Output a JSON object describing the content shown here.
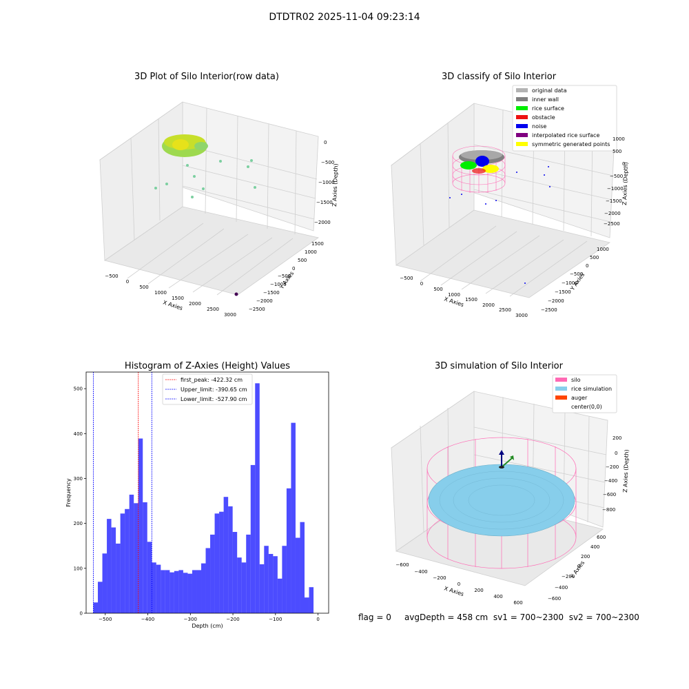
{
  "suptitle": "DTDTR02 2025-11-04 09:23:14",
  "panels": {
    "raw": {
      "title": "3D Plot of Silo Interior(row data)",
      "xlabel": "X Axies",
      "ylabel": "Y Axies",
      "zlabel": "Z Axies (Depth)",
      "xticks": [
        "−500",
        "0",
        "500",
        "1000",
        "1500",
        "2000",
        "2500",
        "3000"
      ],
      "yticks": [
        "1500",
        "1000",
        "500",
        "0",
        "−500",
        "−1000",
        "−1500",
        "−2000",
        "−2500"
      ],
      "zticks": [
        "0",
        "−500",
        "−1000",
        "−1500",
        "−2000"
      ]
    },
    "classify": {
      "title": "3D classify of Silo Interior",
      "xlabel": "X Axies",
      "ylabel": "Y Axies",
      "zlabel": "Z Axies (Depth)",
      "xticks": [
        "−500",
        "0",
        "500",
        "1000",
        "1500",
        "2000",
        "2500",
        "3000"
      ],
      "yticks": [
        "1000",
        "500",
        "0",
        "−500",
        "−1000",
        "−1500",
        "−2000",
        "−2500"
      ],
      "zticks": [
        "1000",
        "500",
        "0",
        "−500",
        "−1000",
        "−1500",
        "−2000",
        "−2500"
      ],
      "legend": [
        {
          "label": "original data",
          "color": "#b3b3b3"
        },
        {
          "label": "inner wall",
          "color": "#808080"
        },
        {
          "label": "rice surface",
          "color": "#00ee00"
        },
        {
          "label": "obstacle",
          "color": "#ee1111"
        },
        {
          "label": "noise",
          "color": "#0000ee"
        },
        {
          "label": "interpolated rice surface",
          "color": "#800080"
        },
        {
          "label": "symmetric generated points",
          "color": "#ffff00"
        }
      ]
    },
    "simulation": {
      "title": "3D simulation of Silo Interior",
      "xlabel": "X Axies",
      "ylabel": "Y Axies",
      "zlabel": "Z Axies (Depth)",
      "xticks": [
        "−600",
        "−400",
        "−200",
        "0",
        "200",
        "400",
        "600"
      ],
      "yticks": [
        "600",
        "400",
        "200",
        "0",
        "−200",
        "−400",
        "−600"
      ],
      "zticks": [
        "200",
        "0",
        "−200",
        "−400",
        "−600",
        "−800"
      ],
      "legend": [
        {
          "label": "silo",
          "color": "#ff69b4"
        },
        {
          "label": "rice simulation",
          "color": "#87ceeb"
        },
        {
          "label": "auger",
          "color": "#ff4500"
        },
        {
          "label": "center(0,0)",
          "color": ""
        }
      ]
    }
  },
  "status": {
    "flag": "flag = 0",
    "avg": "avgDepth = 458 cm",
    "sv1": "sv1 = 700~2300",
    "sv2": "sv2 = 700~2300"
  },
  "chart_data": {
    "type": "bar",
    "title": "Histogram of Z-Axies (Height) Values",
    "xlabel": "Depth (cm)",
    "ylabel": "Frequency",
    "xlim": [
      -545,
      25
    ],
    "ylim": [
      0,
      537
    ],
    "xticks": [
      -500,
      -400,
      -300,
      -200,
      -100,
      0
    ],
    "yticks": [
      0,
      100,
      200,
      300,
      400,
      500
    ],
    "bin_start": -528,
    "bin_width": 10.56,
    "values": [
      24,
      70,
      133,
      210,
      191,
      155,
      222,
      232,
      264,
      245,
      389,
      247,
      159,
      113,
      108,
      96,
      96,
      91,
      94,
      96,
      90,
      88,
      96,
      96,
      111,
      145,
      175,
      222,
      226,
      259,
      238,
      181,
      124,
      113,
      175,
      330,
      512,
      109,
      150,
      132,
      127,
      77,
      150,
      278,
      424,
      168,
      203,
      35,
      58
    ],
    "color": "#0000ff",
    "lines": [
      {
        "label": "first_peak: -422.32 cm",
        "x": -422.32,
        "color": "#ff0000"
      },
      {
        "label": "Upper_limit: -390.65 cm",
        "x": -390.65,
        "color": "#0000ff"
      },
      {
        "label": "Lower_limit: -527.90 cm",
        "x": -527.9,
        "color": "#0000ff"
      }
    ]
  }
}
